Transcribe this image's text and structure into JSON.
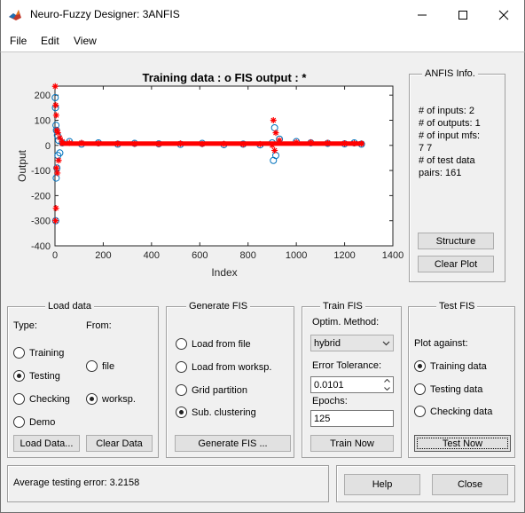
{
  "window": {
    "title": "Neuro-Fuzzy Designer: 3ANFIS"
  },
  "menu": [
    "File",
    "Edit",
    "View"
  ],
  "plot": {
    "title": "Training data : o   FIS output : *",
    "xlabel": "Index",
    "ylabel": "Output",
    "xticks": [
      "0",
      "200",
      "400",
      "600",
      "800",
      "1000",
      "1200",
      "1400"
    ],
    "yticks": [
      "200",
      "100",
      "0",
      "-100",
      "-200",
      "-300",
      "-400"
    ]
  },
  "chart_data": {
    "type": "scatter",
    "title": "Training data : o   FIS output : *",
    "xlabel": "Index",
    "ylabel": "Output",
    "xlim": [
      0,
      1400
    ],
    "ylim": [
      -400,
      250
    ],
    "series": [
      {
        "name": "Training data",
        "marker": "o",
        "color": "#0072bd",
        "x": [
          1,
          2,
          3,
          4,
          5,
          6,
          8,
          10,
          12,
          15,
          20,
          30,
          60,
          110,
          180,
          260,
          330,
          430,
          520,
          610,
          700,
          780,
          850,
          900,
          905,
          910,
          915,
          930,
          1000,
          1060,
          1130,
          1200,
          1240,
          1270
        ],
        "y": [
          190,
          150,
          -300,
          80,
          -130,
          60,
          -90,
          40,
          -40,
          20,
          -30,
          10,
          15,
          5,
          10,
          5,
          8,
          6,
          4,
          8,
          3,
          5,
          2,
          10,
          -60,
          70,
          -40,
          25,
          15,
          10,
          8,
          6,
          10,
          5
        ]
      },
      {
        "name": "FIS output",
        "marker": "*",
        "color": "#ff0000",
        "x": [
          1,
          2,
          3,
          4,
          5,
          6,
          8,
          10,
          12,
          15,
          20,
          30,
          60,
          110,
          180,
          260,
          330,
          430,
          520,
          610,
          700,
          780,
          850,
          900,
          905,
          910,
          915,
          930,
          1000,
          1060,
          1130,
          1200,
          1240,
          1270
        ],
        "y": [
          235,
          -300,
          160,
          -250,
          120,
          -90,
          60,
          -110,
          50,
          -60,
          30,
          15,
          10,
          10,
          8,
          7,
          6,
          5,
          7,
          5,
          6,
          4,
          5,
          0,
          100,
          -20,
          50,
          20,
          12,
          12,
          10,
          8,
          8,
          7
        ]
      }
    ],
    "grid": false,
    "legend": "none"
  },
  "anfis_info": {
    "title": "ANFIS Info.",
    "lines": [
      "# of inputs: 2",
      "# of outputs: 1",
      "# of input mfs:",
      "7  7",
      "# of test data",
      "pairs: 161"
    ],
    "structure_label": "Structure",
    "clear_plot_label": "Clear Plot"
  },
  "load_data": {
    "title": "Load data",
    "type_label": "Type:",
    "from_label": "From:",
    "types": [
      {
        "label": "Training",
        "selected": false
      },
      {
        "label": "Testing",
        "selected": true
      },
      {
        "label": "Checking",
        "selected": false
      },
      {
        "label": "Demo",
        "selected": false
      }
    ],
    "sources": [
      {
        "label": "file",
        "selected": false
      },
      {
        "label": "worksp.",
        "selected": true
      }
    ],
    "load_button": "Load Data...",
    "clear_button": "Clear Data"
  },
  "generate_fis": {
    "title": "Generate FIS",
    "options": [
      {
        "label": "Load from file",
        "selected": false
      },
      {
        "label": "Load from worksp.",
        "selected": false
      },
      {
        "label": "Grid partition",
        "selected": false
      },
      {
        "label": "Sub. clustering",
        "selected": true
      }
    ],
    "button": "Generate FIS ..."
  },
  "train_fis": {
    "title": "Train FIS",
    "method_label": "Optim. Method:",
    "method_value": "hybrid",
    "tolerance_label": "Error Tolerance:",
    "tolerance_value": "0.0101",
    "epochs_label": "Epochs:",
    "epochs_value": "125",
    "button": "Train Now"
  },
  "test_fis": {
    "title": "Test FIS",
    "plot_against_label": "Plot against:",
    "options": [
      {
        "label": "Training data",
        "selected": true
      },
      {
        "label": "Testing data",
        "selected": false
      },
      {
        "label": "Checking data",
        "selected": false
      }
    ],
    "button": "Test Now"
  },
  "status": {
    "text": "Average testing error: 3.2158"
  },
  "footer": {
    "help_label": "Help",
    "close_label": "Close"
  }
}
